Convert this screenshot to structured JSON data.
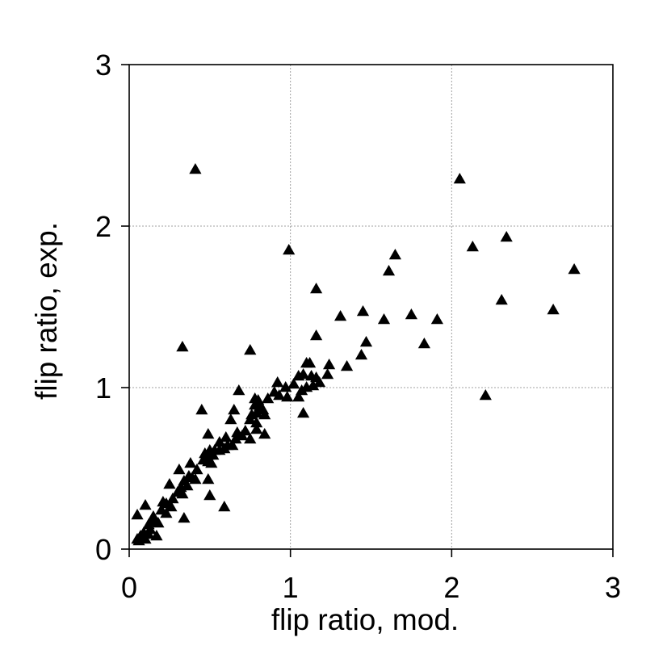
{
  "chart_data": {
    "type": "scatter",
    "xlabel": "flip ratio, mod.",
    "ylabel": "flip ratio, exp.",
    "xlim": [
      0,
      3
    ],
    "ylim": [
      0,
      3
    ],
    "x_ticks": [
      "0",
      "1",
      "2",
      "3"
    ],
    "y_ticks": [
      "0",
      "1",
      "2",
      "3"
    ],
    "grid": true,
    "marker": "triangle",
    "marker_color": "#000000",
    "points": [
      [
        0.41,
        2.35
      ],
      [
        2.05,
        2.29
      ],
      [
        2.34,
        1.93
      ],
      [
        2.13,
        1.87
      ],
      [
        0.99,
        1.85
      ],
      [
        1.65,
        1.82
      ],
      [
        1.61,
        1.72
      ],
      [
        2.76,
        1.73
      ],
      [
        1.16,
        1.61
      ],
      [
        2.31,
        1.54
      ],
      [
        2.63,
        1.48
      ],
      [
        1.45,
        1.47
      ],
      [
        1.75,
        1.45
      ],
      [
        1.31,
        1.44
      ],
      [
        1.58,
        1.42
      ],
      [
        1.91,
        1.42
      ],
      [
        1.16,
        1.32
      ],
      [
        1.47,
        1.28
      ],
      [
        1.83,
        1.27
      ],
      [
        0.33,
        1.25
      ],
      [
        0.75,
        1.23
      ],
      [
        1.44,
        1.2
      ],
      [
        1.1,
        1.15
      ],
      [
        1.12,
        1.15
      ],
      [
        1.24,
        1.14
      ],
      [
        1.35,
        1.13
      ],
      [
        1.05,
        1.07
      ],
      [
        1.08,
        1.08
      ],
      [
        1.13,
        1.07
      ],
      [
        1.16,
        1.06
      ],
      [
        1.23,
        1.08
      ],
      [
        0.92,
        1.03
      ],
      [
        1.02,
        1.02
      ],
      [
        0.97,
        1.0
      ],
      [
        1.14,
        1.01
      ],
      [
        1.18,
        1.03
      ],
      [
        0.68,
        0.98
      ],
      [
        0.9,
        0.97
      ],
      [
        1.07,
        0.98
      ],
      [
        1.1,
        1.0
      ],
      [
        0.93,
        0.95
      ],
      [
        0.98,
        0.94
      ],
      [
        1.05,
        0.94
      ],
      [
        2.21,
        0.95
      ],
      [
        0.78,
        0.93
      ],
      [
        0.8,
        0.92
      ],
      [
        0.86,
        0.93
      ],
      [
        0.78,
        0.89
      ],
      [
        0.81,
        0.88
      ],
      [
        0.83,
        0.86
      ],
      [
        0.45,
        0.86
      ],
      [
        0.65,
        0.86
      ],
      [
        0.79,
        0.84
      ],
      [
        0.84,
        0.83
      ],
      [
        0.76,
        0.83
      ],
      [
        1.08,
        0.84
      ],
      [
        0.63,
        0.8
      ],
      [
        0.75,
        0.8
      ],
      [
        0.79,
        0.78
      ],
      [
        0.49,
        0.71
      ],
      [
        0.72,
        0.73
      ],
      [
        0.79,
        0.74
      ],
      [
        0.84,
        0.71
      ],
      [
        0.67,
        0.72
      ],
      [
        0.7,
        0.7
      ],
      [
        0.6,
        0.69
      ],
      [
        0.66,
        0.68
      ],
      [
        0.56,
        0.66
      ],
      [
        0.61,
        0.64
      ],
      [
        0.64,
        0.64
      ],
      [
        0.5,
        0.61
      ],
      [
        0.53,
        0.61
      ],
      [
        0.56,
        0.61
      ],
      [
        0.59,
        0.62
      ],
      [
        0.75,
        0.68
      ],
      [
        0.47,
        0.59
      ],
      [
        0.49,
        0.58
      ],
      [
        0.52,
        0.58
      ],
      [
        0.46,
        0.55
      ],
      [
        0.49,
        0.54
      ],
      [
        0.51,
        0.53
      ],
      [
        0.38,
        0.53
      ],
      [
        0.31,
        0.49
      ],
      [
        0.42,
        0.49
      ],
      [
        0.37,
        0.45
      ],
      [
        0.39,
        0.44
      ],
      [
        0.41,
        0.43
      ],
      [
        0.34,
        0.42
      ],
      [
        0.49,
        0.43
      ],
      [
        0.25,
        0.4
      ],
      [
        0.32,
        0.38
      ],
      [
        0.36,
        0.39
      ],
      [
        0.3,
        0.35
      ],
      [
        0.33,
        0.34
      ],
      [
        0.5,
        0.33
      ],
      [
        0.27,
        0.31
      ],
      [
        0.21,
        0.29
      ],
      [
        0.23,
        0.28
      ],
      [
        0.26,
        0.26
      ],
      [
        0.1,
        0.27
      ],
      [
        0.59,
        0.26
      ],
      [
        0.2,
        0.24
      ],
      [
        0.23,
        0.22
      ],
      [
        0.15,
        0.2
      ],
      [
        0.05,
        0.21
      ],
      [
        0.34,
        0.19
      ],
      [
        0.15,
        0.17
      ],
      [
        0.18,
        0.16
      ],
      [
        0.12,
        0.15
      ],
      [
        0.13,
        0.12
      ],
      [
        0.09,
        0.1
      ],
      [
        0.12,
        0.09
      ],
      [
        0.17,
        0.08
      ],
      [
        0.07,
        0.08
      ],
      [
        0.05,
        0.06
      ],
      [
        0.1,
        0.06
      ],
      [
        0.06,
        0.05
      ],
      [
        0.09,
        0.07
      ]
    ]
  }
}
